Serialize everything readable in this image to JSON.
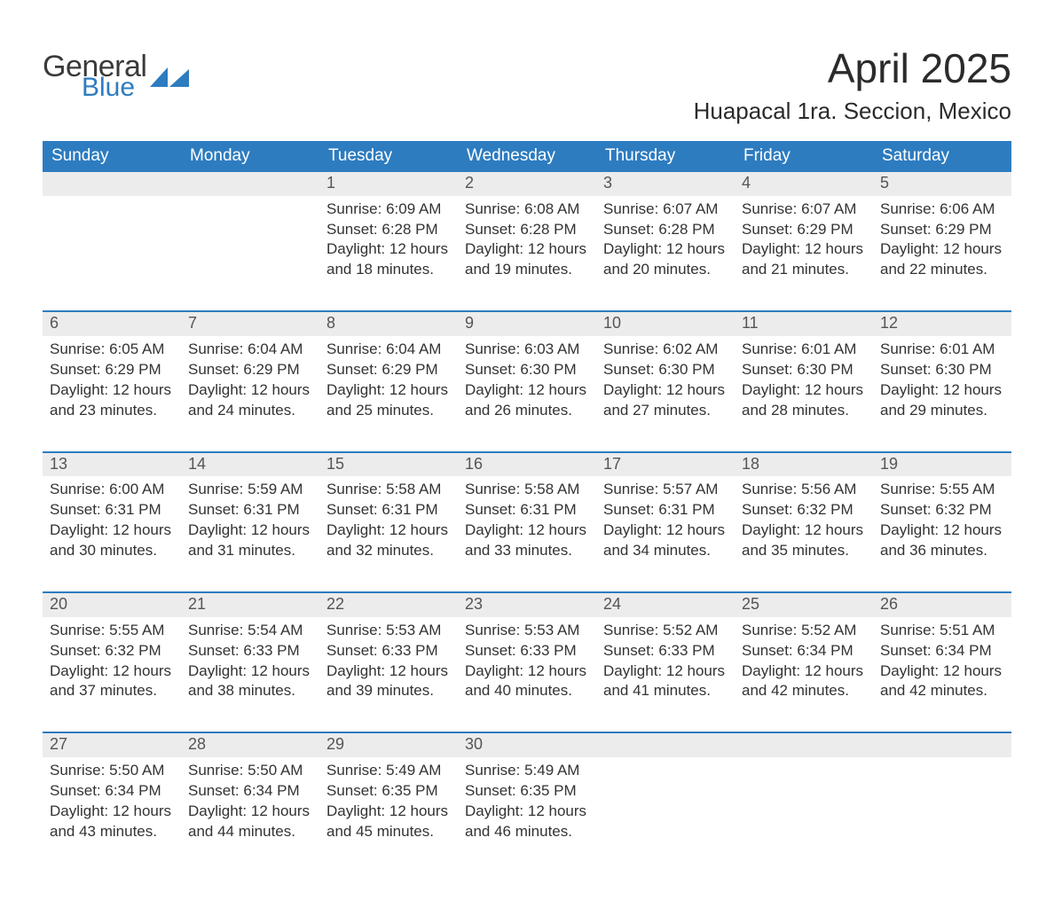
{
  "logo": {
    "word1": "General",
    "word2": "Blue",
    "accent_color": "#2d7cc0",
    "text_color": "#3a3a3a"
  },
  "header": {
    "title": "April 2025",
    "subtitle": "Huapacal 1ra. Seccion, Mexico"
  },
  "colors": {
    "header_bg": "#2d7cc0",
    "header_text": "#ffffff",
    "daynum_bg": "#ececec",
    "daynum_text": "#555555",
    "body_text": "#333333",
    "row_divider": "#2d7cc0",
    "page_bg": "#ffffff"
  },
  "typography": {
    "title_fontsize": 46,
    "subtitle_fontsize": 26,
    "weekday_fontsize": 19,
    "daynum_fontsize": 18,
    "body_fontsize": 17,
    "font_family": "Segoe UI"
  },
  "calendar": {
    "type": "table",
    "columns": [
      "Sunday",
      "Monday",
      "Tuesday",
      "Wednesday",
      "Thursday",
      "Friday",
      "Saturday"
    ],
    "weeks": [
      [
        null,
        null,
        {
          "d": "1",
          "sunrise": "Sunrise: 6:09 AM",
          "sunset": "Sunset: 6:28 PM",
          "day1": "Daylight: 12 hours",
          "day2": "and 18 minutes."
        },
        {
          "d": "2",
          "sunrise": "Sunrise: 6:08 AM",
          "sunset": "Sunset: 6:28 PM",
          "day1": "Daylight: 12 hours",
          "day2": "and 19 minutes."
        },
        {
          "d": "3",
          "sunrise": "Sunrise: 6:07 AM",
          "sunset": "Sunset: 6:28 PM",
          "day1": "Daylight: 12 hours",
          "day2": "and 20 minutes."
        },
        {
          "d": "4",
          "sunrise": "Sunrise: 6:07 AM",
          "sunset": "Sunset: 6:29 PM",
          "day1": "Daylight: 12 hours",
          "day2": "and 21 minutes."
        },
        {
          "d": "5",
          "sunrise": "Sunrise: 6:06 AM",
          "sunset": "Sunset: 6:29 PM",
          "day1": "Daylight: 12 hours",
          "day2": "and 22 minutes."
        }
      ],
      [
        {
          "d": "6",
          "sunrise": "Sunrise: 6:05 AM",
          "sunset": "Sunset: 6:29 PM",
          "day1": "Daylight: 12 hours",
          "day2": "and 23 minutes."
        },
        {
          "d": "7",
          "sunrise": "Sunrise: 6:04 AM",
          "sunset": "Sunset: 6:29 PM",
          "day1": "Daylight: 12 hours",
          "day2": "and 24 minutes."
        },
        {
          "d": "8",
          "sunrise": "Sunrise: 6:04 AM",
          "sunset": "Sunset: 6:29 PM",
          "day1": "Daylight: 12 hours",
          "day2": "and 25 minutes."
        },
        {
          "d": "9",
          "sunrise": "Sunrise: 6:03 AM",
          "sunset": "Sunset: 6:30 PM",
          "day1": "Daylight: 12 hours",
          "day2": "and 26 minutes."
        },
        {
          "d": "10",
          "sunrise": "Sunrise: 6:02 AM",
          "sunset": "Sunset: 6:30 PM",
          "day1": "Daylight: 12 hours",
          "day2": "and 27 minutes."
        },
        {
          "d": "11",
          "sunrise": "Sunrise: 6:01 AM",
          "sunset": "Sunset: 6:30 PM",
          "day1": "Daylight: 12 hours",
          "day2": "and 28 minutes."
        },
        {
          "d": "12",
          "sunrise": "Sunrise: 6:01 AM",
          "sunset": "Sunset: 6:30 PM",
          "day1": "Daylight: 12 hours",
          "day2": "and 29 minutes."
        }
      ],
      [
        {
          "d": "13",
          "sunrise": "Sunrise: 6:00 AM",
          "sunset": "Sunset: 6:31 PM",
          "day1": "Daylight: 12 hours",
          "day2": "and 30 minutes."
        },
        {
          "d": "14",
          "sunrise": "Sunrise: 5:59 AM",
          "sunset": "Sunset: 6:31 PM",
          "day1": "Daylight: 12 hours",
          "day2": "and 31 minutes."
        },
        {
          "d": "15",
          "sunrise": "Sunrise: 5:58 AM",
          "sunset": "Sunset: 6:31 PM",
          "day1": "Daylight: 12 hours",
          "day2": "and 32 minutes."
        },
        {
          "d": "16",
          "sunrise": "Sunrise: 5:58 AM",
          "sunset": "Sunset: 6:31 PM",
          "day1": "Daylight: 12 hours",
          "day2": "and 33 minutes."
        },
        {
          "d": "17",
          "sunrise": "Sunrise: 5:57 AM",
          "sunset": "Sunset: 6:31 PM",
          "day1": "Daylight: 12 hours",
          "day2": "and 34 minutes."
        },
        {
          "d": "18",
          "sunrise": "Sunrise: 5:56 AM",
          "sunset": "Sunset: 6:32 PM",
          "day1": "Daylight: 12 hours",
          "day2": "and 35 minutes."
        },
        {
          "d": "19",
          "sunrise": "Sunrise: 5:55 AM",
          "sunset": "Sunset: 6:32 PM",
          "day1": "Daylight: 12 hours",
          "day2": "and 36 minutes."
        }
      ],
      [
        {
          "d": "20",
          "sunrise": "Sunrise: 5:55 AM",
          "sunset": "Sunset: 6:32 PM",
          "day1": "Daylight: 12 hours",
          "day2": "and 37 minutes."
        },
        {
          "d": "21",
          "sunrise": "Sunrise: 5:54 AM",
          "sunset": "Sunset: 6:33 PM",
          "day1": "Daylight: 12 hours",
          "day2": "and 38 minutes."
        },
        {
          "d": "22",
          "sunrise": "Sunrise: 5:53 AM",
          "sunset": "Sunset: 6:33 PM",
          "day1": "Daylight: 12 hours",
          "day2": "and 39 minutes."
        },
        {
          "d": "23",
          "sunrise": "Sunrise: 5:53 AM",
          "sunset": "Sunset: 6:33 PM",
          "day1": "Daylight: 12 hours",
          "day2": "and 40 minutes."
        },
        {
          "d": "24",
          "sunrise": "Sunrise: 5:52 AM",
          "sunset": "Sunset: 6:33 PM",
          "day1": "Daylight: 12 hours",
          "day2": "and 41 minutes."
        },
        {
          "d": "25",
          "sunrise": "Sunrise: 5:52 AM",
          "sunset": "Sunset: 6:34 PM",
          "day1": "Daylight: 12 hours",
          "day2": "and 42 minutes."
        },
        {
          "d": "26",
          "sunrise": "Sunrise: 5:51 AM",
          "sunset": "Sunset: 6:34 PM",
          "day1": "Daylight: 12 hours",
          "day2": "and 42 minutes."
        }
      ],
      [
        {
          "d": "27",
          "sunrise": "Sunrise: 5:50 AM",
          "sunset": "Sunset: 6:34 PM",
          "day1": "Daylight: 12 hours",
          "day2": "and 43 minutes."
        },
        {
          "d": "28",
          "sunrise": "Sunrise: 5:50 AM",
          "sunset": "Sunset: 6:34 PM",
          "day1": "Daylight: 12 hours",
          "day2": "and 44 minutes."
        },
        {
          "d": "29",
          "sunrise": "Sunrise: 5:49 AM",
          "sunset": "Sunset: 6:35 PM",
          "day1": "Daylight: 12 hours",
          "day2": "and 45 minutes."
        },
        {
          "d": "30",
          "sunrise": "Sunrise: 5:49 AM",
          "sunset": "Sunset: 6:35 PM",
          "day1": "Daylight: 12 hours",
          "day2": "and 46 minutes."
        },
        null,
        null,
        null
      ]
    ]
  }
}
